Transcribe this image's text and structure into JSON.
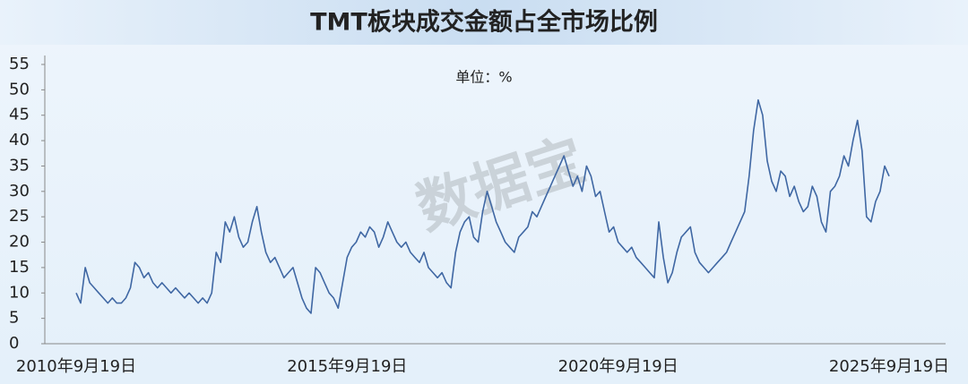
{
  "chart_data": {
    "type": "line",
    "title": "TMT板块成交金额占全市场比例",
    "unit_label": "单位：%",
    "watermark": "数据宝",
    "color": "#3f67a3",
    "categories": [
      "2010年9月19日",
      null,
      null,
      null,
      null,
      null,
      null,
      null,
      null,
      null,
      null,
      null,
      null,
      null,
      null,
      null,
      null,
      null,
      null,
      null,
      null,
      null,
      null,
      null,
      null,
      null,
      null,
      null,
      null,
      null,
      null,
      null,
      null,
      null,
      null,
      null,
      null,
      null,
      null,
      null,
      null,
      null,
      null,
      null,
      null,
      null,
      null,
      null,
      null,
      null,
      null,
      null,
      null,
      null,
      null,
      null,
      null,
      null,
      null,
      null,
      "2015年9月19日",
      null,
      null,
      null,
      null,
      null,
      null,
      null,
      null,
      null,
      null,
      null,
      null,
      null,
      null,
      null,
      null,
      null,
      null,
      null,
      null,
      null,
      null,
      null,
      null,
      null,
      null,
      null,
      null,
      null,
      null,
      null,
      null,
      null,
      null,
      null,
      null,
      null,
      null,
      null,
      null,
      null,
      null,
      null,
      null,
      null,
      null,
      null,
      null,
      null,
      null,
      null,
      null,
      null,
      null,
      null,
      null,
      null,
      null,
      null,
      "2020年9月19日",
      null,
      null,
      null,
      null,
      null,
      null,
      null,
      null,
      null,
      null,
      null,
      null,
      null,
      null,
      null,
      null,
      null,
      null,
      null,
      null,
      null,
      null,
      null,
      null,
      null,
      null,
      null,
      null,
      null,
      null,
      null,
      null,
      null,
      null,
      null,
      null,
      null,
      null,
      null,
      null,
      null,
      null,
      null,
      null,
      null,
      null,
      null,
      null,
      null,
      null,
      null,
      null,
      null,
      null,
      null,
      null,
      null,
      null,
      null,
      "2025年9月19日"
    ],
    "values": [
      10,
      8,
      15,
      12,
      11,
      10,
      9,
      8,
      9,
      8,
      8,
      9,
      11,
      16,
      15,
      13,
      14,
      12,
      11,
      12,
      11,
      10,
      11,
      10,
      9,
      10,
      9,
      8,
      9,
      8,
      10,
      18,
      16,
      24,
      22,
      25,
      21,
      19,
      20,
      24,
      27,
      22,
      18,
      16,
      17,
      15,
      13,
      14,
      15,
      12,
      9,
      7,
      6,
      15,
      14,
      12,
      10,
      9,
      7,
      12,
      17,
      19,
      20,
      22,
      21,
      23,
      22,
      19,
      21,
      24,
      22,
      20,
      19,
      20,
      18,
      17,
      16,
      18,
      15,
      14,
      13,
      14,
      12,
      11,
      18,
      22,
      24,
      25,
      21,
      20,
      26,
      30,
      27,
      24,
      22,
      20,
      19,
      18,
      21,
      22,
      23,
      26,
      25,
      27,
      29,
      31,
      33,
      35,
      37,
      34,
      31,
      33,
      30,
      35,
      33,
      29,
      30,
      26,
      22,
      23,
      20,
      19,
      18,
      19,
      17,
      16,
      15,
      14,
      13,
      24,
      17,
      12,
      14,
      18,
      21,
      22,
      23,
      18,
      16,
      15,
      14,
      15,
      16,
      17,
      18,
      20,
      22,
      24,
      26,
      33,
      42,
      48,
      45,
      36,
      32,
      30,
      34,
      33,
      29,
      31,
      28,
      26,
      27,
      31,
      29,
      24,
      22,
      30,
      31,
      33,
      37,
      35,
      40,
      44,
      38,
      25,
      24,
      28,
      30,
      35,
      33
    ],
    "ylim": [
      0,
      55
    ],
    "yticks": [
      0,
      5,
      10,
      15,
      20,
      25,
      30,
      35,
      40,
      45,
      50,
      55
    ]
  }
}
